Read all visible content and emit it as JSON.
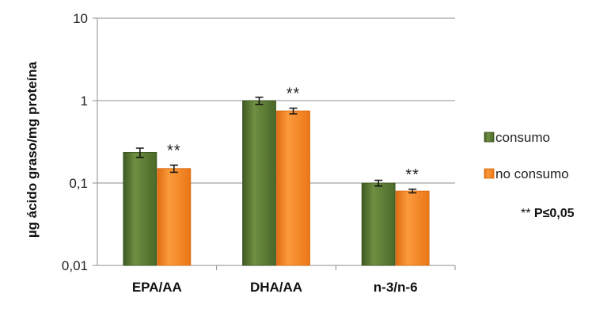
{
  "chart_data": {
    "type": "bar",
    "yscale": "log",
    "ylim": [
      0.01,
      10
    ],
    "yticks": [
      "0,01",
      "0,1",
      "1",
      "10"
    ],
    "ytick_values": [
      0.01,
      0.1,
      1,
      10
    ],
    "ylabel": "µg ácido graso/mg proteína",
    "xlabel": "",
    "grid": true,
    "legend_position": "right",
    "categories": [
      "EPA/AA",
      "DHA/AA",
      "n-3/n-6"
    ],
    "series": [
      {
        "name": "consumo",
        "color": "#5a7a32",
        "values": [
          0.235,
          1.0,
          0.1
        ],
        "errors": [
          0.03,
          0.1,
          0.008
        ]
      },
      {
        "name": "no consumo",
        "color": "#f58220",
        "values": [
          0.15,
          0.75,
          0.08
        ],
        "errors": [
          0.015,
          0.06,
          0.004
        ]
      }
    ],
    "annotations": [
      "**",
      "**",
      "**"
    ],
    "note_stars": "**",
    "note_text": "P≤0,05"
  }
}
